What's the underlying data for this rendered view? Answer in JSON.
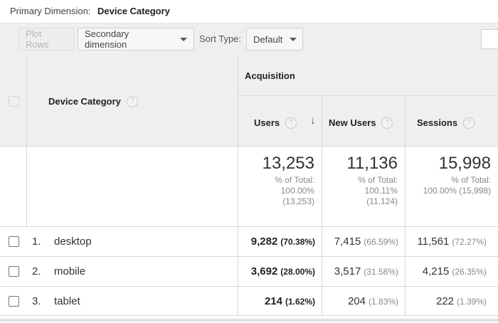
{
  "primary_dimension": {
    "label": "Primary Dimension:",
    "value": "Device Category"
  },
  "toolbar": {
    "plot_rows": "Plot Rows",
    "secondary_dimension": "Secondary dimension",
    "sort_type_label": "Sort Type:",
    "sort_type_value": "Default"
  },
  "table": {
    "dimension_header": "Device Category",
    "group_header": "Acquisition",
    "columns": [
      {
        "label": "Users",
        "sorted": "desc"
      },
      {
        "label": "New Users"
      },
      {
        "label": "Sessions"
      }
    ],
    "totals": [
      {
        "value": "13,253",
        "line1": "% of Total:",
        "line2": "100.00%",
        "line3": "(13,253)"
      },
      {
        "value": "11,136",
        "line1": "% of Total:",
        "line2": "100.11%",
        "line3": "(11,124)"
      },
      {
        "value": "15,998",
        "line1": "% of Total:",
        "line2": "100.00% (15,998)"
      }
    ],
    "rows": [
      {
        "index": "1.",
        "name": "desktop",
        "users": "9,282",
        "users_pct": "(70.38%)",
        "new_users": "7,415",
        "new_users_pct": "(66.59%)",
        "sessions": "11,561",
        "sessions_pct": "(72.27%)"
      },
      {
        "index": "2.",
        "name": "mobile",
        "users": "3,692",
        "users_pct": "(28.00%)",
        "new_users": "3,517",
        "new_users_pct": "(31.58%)",
        "sessions": "4,215",
        "sessions_pct": "(26.35%)"
      },
      {
        "index": "3.",
        "name": "tablet",
        "users": "214",
        "users_pct": "(1.62%)",
        "new_users": "204",
        "new_users_pct": "(1.83%)",
        "sessions": "222",
        "sessions_pct": "(1.39%)"
      }
    ]
  },
  "help_icon_glyph": "?",
  "sort_arrow_glyph": "↓"
}
